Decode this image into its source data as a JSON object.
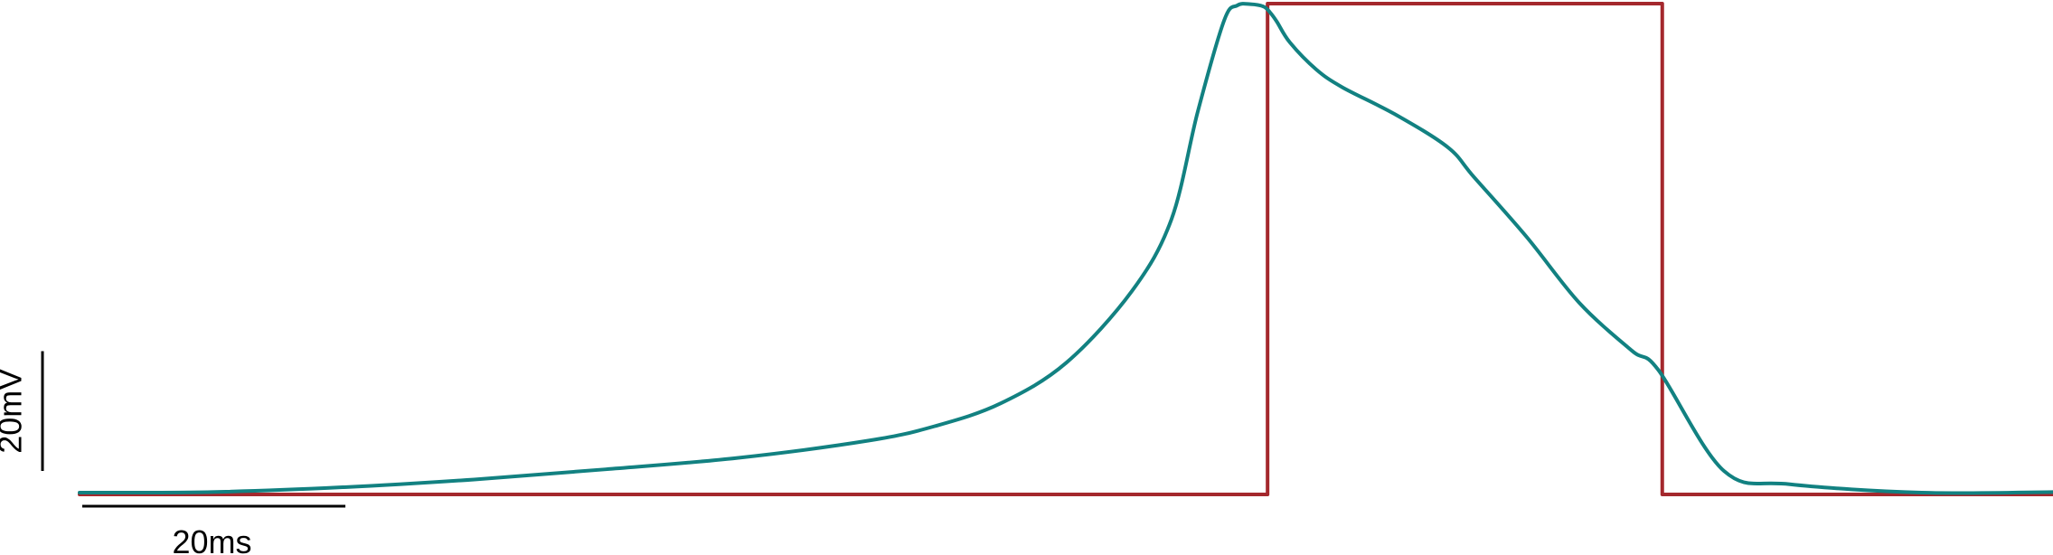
{
  "chart_data": {
    "type": "line",
    "title": "",
    "xlabel": "",
    "ylabel": "",
    "grid": false,
    "legend": "none",
    "x_units": "ms",
    "y_units": "mV",
    "xlim": [
      0,
      150
    ],
    "ylim": [
      0,
      82
    ],
    "scale_bars": {
      "time": {
        "value": 20,
        "label": "20ms"
      },
      "voltage": {
        "value": 20,
        "label": "20mV"
      }
    },
    "series": [
      {
        "color": "#128181",
        "x": [
          0,
          10,
          20,
          30,
          40,
          50,
          60,
          65,
          70,
          75,
          80,
          83,
          85,
          87,
          88,
          89,
          90,
          90.5,
          91,
          92,
          94,
          96,
          100,
          104,
          106,
          110,
          114,
          118,
          120,
          125,
          130,
          140,
          150
        ],
        "y": [
          0.3,
          0.4,
          1.2,
          2.5,
          4.2,
          6.1,
          9.0,
          11.4,
          15.2,
          22.0,
          34.0,
          46.0,
          64.0,
          79.2,
          81.7,
          81.9,
          81.5,
          80.5,
          79.0,
          75.5,
          71.0,
          68.0,
          63.5,
          58.0,
          53.0,
          43.0,
          32.0,
          24.0,
          20.8,
          3.9,
          1.7,
          0.3,
          0.4
        ]
      },
      {
        "color": "#a4282d",
        "x": [
          0,
          90.3,
          90.3,
          120.3,
          120.3,
          150
        ],
        "y": [
          0,
          0,
          82,
          82,
          0,
          0
        ]
      }
    ]
  }
}
